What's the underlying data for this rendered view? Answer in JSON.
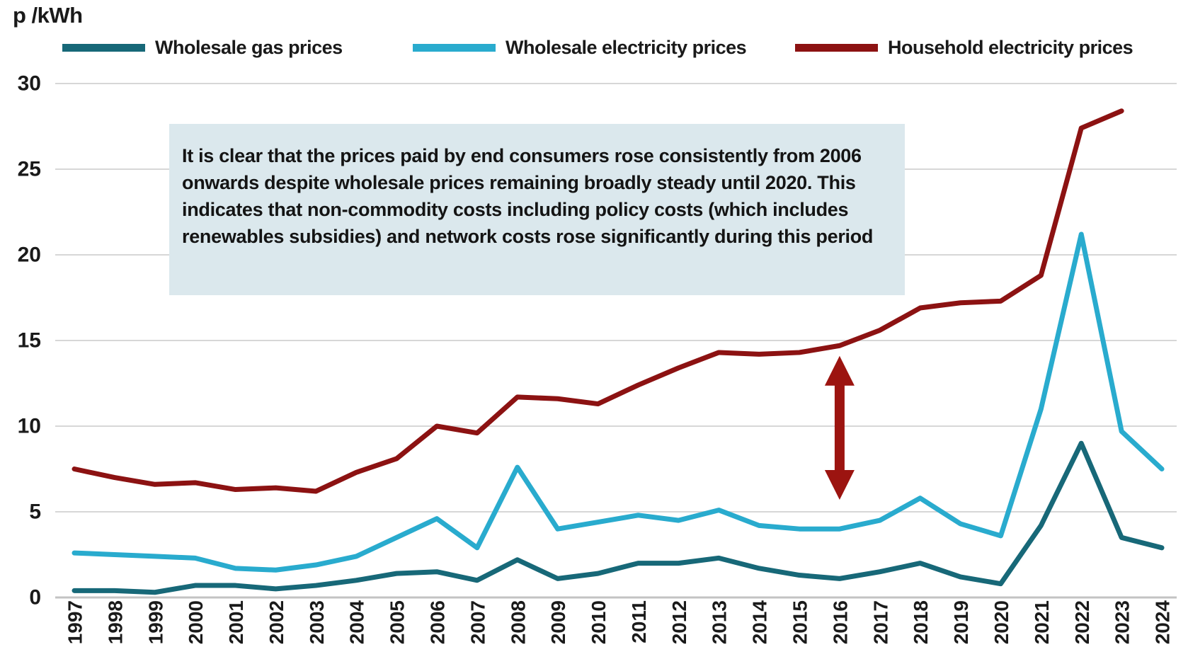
{
  "chart_data": {
    "type": "line",
    "title": "",
    "ylabel": "p /kWh",
    "xlabel": "",
    "x": [
      1997,
      1998,
      1999,
      2000,
      2001,
      2002,
      2003,
      2004,
      2005,
      2006,
      2007,
      2008,
      2009,
      2010,
      2011,
      2012,
      2013,
      2014,
      2015,
      2016,
      2017,
      2018,
      2019,
      2020,
      2021,
      2022,
      2023,
      2024
    ],
    "ylim": [
      0,
      30
    ],
    "yticks": [
      0,
      5,
      10,
      15,
      20,
      25,
      30
    ],
    "grid": "horizontal",
    "legend_position": "top",
    "series": [
      {
        "name": "Wholesale gas prices",
        "color": "#176878",
        "values": [
          0.4,
          0.4,
          0.3,
          0.7,
          0.7,
          0.5,
          0.7,
          1.0,
          1.4,
          1.5,
          1.0,
          2.2,
          1.1,
          1.4,
          2.0,
          2.0,
          2.3,
          1.7,
          1.3,
          1.1,
          1.5,
          2.0,
          1.2,
          0.8,
          4.2,
          9.0,
          3.5,
          2.9
        ]
      },
      {
        "name": "Wholesale electricity prices",
        "color": "#29abce",
        "values": [
          2.6,
          2.5,
          2.4,
          2.3,
          1.7,
          1.6,
          1.9,
          2.4,
          3.5,
          4.6,
          2.9,
          7.6,
          4.0,
          4.4,
          4.8,
          4.5,
          5.1,
          4.2,
          4.0,
          4.0,
          4.5,
          5.8,
          4.3,
          3.6,
          11.0,
          21.2,
          9.7,
          7.5
        ]
      },
      {
        "name": "Household electricity prices",
        "color": "#8c1212",
        "values": [
          7.5,
          7.0,
          6.6,
          6.7,
          6.3,
          6.4,
          6.2,
          7.3,
          8.1,
          10.0,
          9.6,
          11.7,
          11.6,
          11.3,
          12.4,
          13.4,
          14.3,
          14.2,
          14.3,
          14.7,
          15.6,
          16.9,
          17.2,
          17.3,
          18.8,
          27.4,
          28.4,
          null
        ]
      }
    ],
    "annotations": {
      "note_text": "It is clear that the prices paid by end consumers rose consistently from 2006 onwards despite wholesale prices remaining broadly steady until 2020. This indicates that non-commodity costs including policy costs (which includes renewables subsidies) and network costs rose significantly during this period",
      "arrow": {
        "x": 2016,
        "value_from": 5.7,
        "value_to": 14.1,
        "color": "#9c1410",
        "style": "double-headed-vertical"
      }
    },
    "colors": {
      "gridline": "#d7d7d7",
      "baseline": "#c3c3c3",
      "note_box_background": "#dbe8ed",
      "text": "#1a1a1a"
    }
  }
}
